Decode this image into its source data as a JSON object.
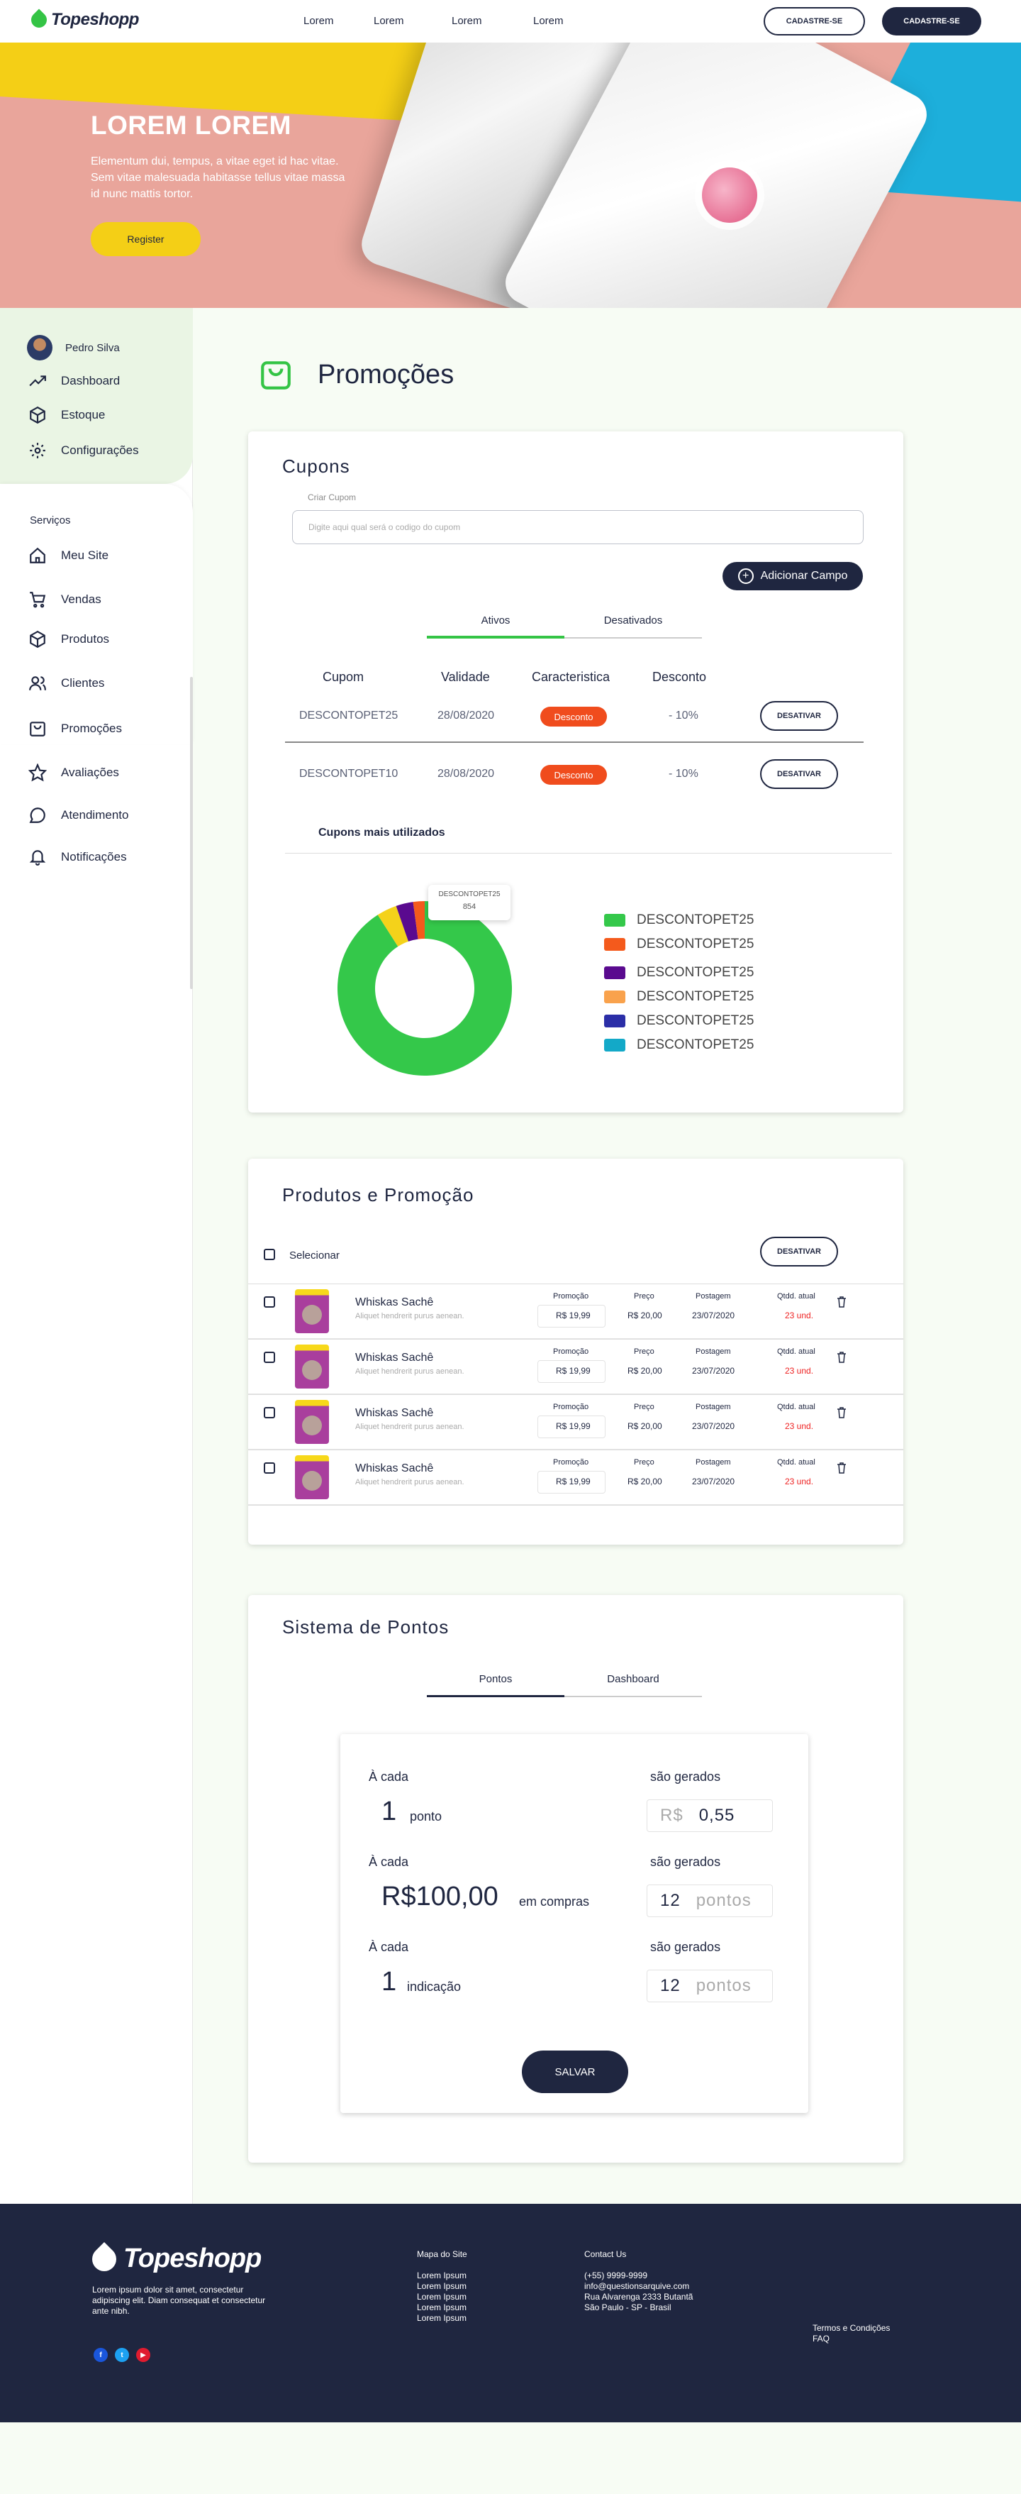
{
  "header": {
    "brand": "Topeshopp",
    "nav": [
      "Lorem",
      "Lorem",
      "Lorem",
      "Lorem"
    ],
    "btn_outline": "CADASTRE-SE",
    "btn_dark": "CADASTRE-SE"
  },
  "hero": {
    "title": "LOREM LOREM",
    "text": "Elementum dui, tempus, a vitae eget id hac vitae. Sem vitae malesuada habitasse tellus vitae massa id nunc mattis tortor.",
    "button": "Register"
  },
  "sidebar": {
    "user": "Pedro Silva",
    "top_items": [
      "Dashboard",
      "Estoque",
      "Configurações"
    ],
    "section": "Serviços",
    "items": [
      "Meu Site",
      "Vendas",
      "Produtos",
      "Clientes",
      "Promoções",
      "Avaliações",
      "Atendimento",
      "Notificações"
    ]
  },
  "page": {
    "title": "Promoções"
  },
  "cupons": {
    "title": "Cupons",
    "input_label": "Criar Cupom",
    "input_placeholder": "Digite aqui qual será o codigo do cupom",
    "add_button": "Adicionar Campo",
    "tabs": [
      "Ativos",
      "Desativados"
    ],
    "columns": [
      "Cupom",
      "Validade",
      "Caracteristica",
      "Desconto"
    ],
    "rows": [
      {
        "code": "DESCONTOPET25",
        "date": "28/08/2020",
        "type": "Desconto",
        "discount": "- 10%",
        "action": "DESATIVAR"
      },
      {
        "code": "DESCONTOPET10",
        "date": "28/08/2020",
        "type": "Desconto",
        "discount": "- 10%",
        "action": "DESATIVAR"
      }
    ],
    "chart_title": "Cupons mais utilizados",
    "tooltip": {
      "label": "DESCONTOPET25",
      "value": "854"
    }
  },
  "chart_data": {
    "type": "pie",
    "title": "Cupons mais utilizados",
    "series": [
      {
        "name": "DESCONTOPET25",
        "value": 854,
        "color": "#34c84a"
      },
      {
        "name": "DESCONTOPET25",
        "value": 20,
        "color": "#f45a1c"
      },
      {
        "name": "DESCONTOPET25",
        "value": 30,
        "color": "#5a0a8f"
      },
      {
        "name": "DESCONTOPET25",
        "value": 35,
        "color": "#f4d21a"
      },
      {
        "name": "DESCONTOPET25",
        "value": 0,
        "color": "#f9a24c"
      },
      {
        "name": "DESCONTOPET25",
        "value": 0,
        "color": "#2b2ea7"
      },
      {
        "name": "DESCONTOPET25",
        "value": 0,
        "color": "#13a9c8"
      }
    ],
    "legend": [
      "DESCONTOPET25",
      "DESCONTOPET25",
      "DESCONTOPET25",
      "DESCONTOPET25",
      "DESCONTOPET25",
      "DESCONTOPET25"
    ],
    "legend_colors": [
      "#34c84a",
      "#f45a1c",
      "#5a0a8f",
      "#f9a24c",
      "#2b2ea7",
      "#13a9c8"
    ]
  },
  "produtos": {
    "title": "Produtos e Promoção",
    "select_label": "Selecionar",
    "action": "DESATIVAR",
    "col_promo": "Promoção",
    "col_price": "Preço",
    "col_post": "Postagem",
    "col_qty": "Qtdd. atual",
    "items": [
      {
        "name": "Whiskas Sachê",
        "desc": "Aliquet hendrerit purus aenean.",
        "promo": "R$ 19,99",
        "price": "R$ 20,00",
        "post": "23/07/2020",
        "qty": "23 und."
      },
      {
        "name": "Whiskas Sachê",
        "desc": "Aliquet hendrerit purus aenean.",
        "promo": "R$ 19,99",
        "price": "R$ 20,00",
        "post": "23/07/2020",
        "qty": "23 und."
      },
      {
        "name": "Whiskas Sachê",
        "desc": "Aliquet hendrerit purus aenean.",
        "promo": "R$ 19,99",
        "price": "R$ 20,00",
        "post": "23/07/2020",
        "qty": "23 und."
      },
      {
        "name": "Whiskas Sachê",
        "desc": "Aliquet hendrerit purus aenean.",
        "promo": "R$ 19,99",
        "price": "R$ 20,00",
        "post": "23/07/2020",
        "qty": "23 und."
      }
    ]
  },
  "pontos": {
    "title": "Sistema de Pontos",
    "tabs": [
      "Pontos",
      "Dashboard"
    ],
    "each": "À cada",
    "generated": "são gerados",
    "rules": [
      {
        "amount": "1",
        "unit": "ponto",
        "prefix": "R$",
        "value": "0,55"
      },
      {
        "amount": "R$100,00",
        "unit": "em compras",
        "prefix": "12",
        "value": "pontos"
      },
      {
        "amount": "1",
        "unit": "indicação",
        "prefix": "12",
        "value": "pontos"
      }
    ],
    "save": "SALVAR"
  },
  "footer": {
    "brand": "Topeshopp",
    "about": "Lorem ipsum dolor sit amet, consectetur adipiscing elit. Diam consequat et consectetur ante nibh.",
    "map_title": "Mapa do Site",
    "map_links": [
      "Lorem Ipsum",
      "Lorem Ipsum",
      "Lorem Ipsum",
      "Lorem Ipsum",
      "Lorem Ipsum"
    ],
    "contact_title": "Contact Us",
    "contact_lines": [
      "(+55) 9999-9999",
      "info@questionsarquive.com",
      "Rua Alvarenga 2333 Butantã",
      "São Paulo - SP - Brasil"
    ],
    "terms": "Termos e Condições",
    "faq": "FAQ",
    "social": [
      "f",
      "t",
      "▶"
    ]
  }
}
